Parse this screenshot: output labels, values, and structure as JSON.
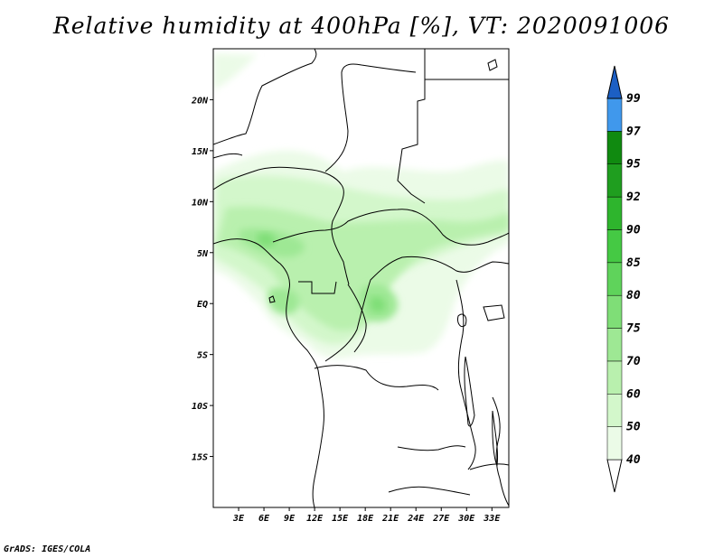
{
  "title": "Relative humidity at 400hPa [%], VT: 2020091006",
  "credit": "GrADS: IGES/COLA",
  "map": {
    "lon_range": [
      0,
      35
    ],
    "lat_range": [
      -20,
      25
    ],
    "x_ticks": [
      "3E",
      "6E",
      "9E",
      "12E",
      "15E",
      "18E",
      "21E",
      "24E",
      "27E",
      "30E",
      "33E"
    ],
    "x_tick_values": [
      3,
      6,
      9,
      12,
      15,
      18,
      21,
      24,
      27,
      30,
      33
    ],
    "y_ticks": [
      "20N",
      "15N",
      "10N",
      "5N",
      "EQ",
      "5S",
      "10S",
      "15S"
    ],
    "y_tick_values": [
      20,
      15,
      10,
      5,
      0,
      -5,
      -10,
      -15
    ]
  },
  "colorbar": {
    "levels": [
      "40",
      "50",
      "60",
      "70",
      "75",
      "80",
      "85",
      "90",
      "92",
      "95",
      "97",
      "99"
    ],
    "colors": [
      "#ebfbe7",
      "#d3f7cb",
      "#b9f0ae",
      "#9ee894",
      "#7fde77",
      "#5fd35b",
      "#45c944",
      "#2eb52d",
      "#1f9e1f",
      "#108a10",
      "#4098ec",
      "#2176d8",
      "#1c5fc4"
    ]
  },
  "chart_data": {
    "type": "heatmap",
    "title": "Relative humidity at 400hPa [%], VT: 2020091006",
    "xlabel": "",
    "ylabel": "",
    "xlim": [
      0,
      35
    ],
    "ylim": [
      -20,
      25
    ],
    "levels": [
      40,
      50,
      60,
      70,
      75,
      80,
      85,
      90,
      92,
      95,
      97,
      99
    ],
    "regions": [
      {
        "lon": [
          0,
          35
        ],
        "lat": [
          -4,
          14
        ],
        "rh": "40-70"
      },
      {
        "lon": [
          0,
          10
        ],
        "lat": [
          2,
          8
        ],
        "rh": "60-75"
      },
      {
        "lon": [
          18,
          19
        ],
        "lat": [
          -1,
          1
        ],
        "rh": "70-80"
      },
      {
        "lon": [
          0,
          35
        ],
        "lat": [
          -20,
          -6
        ],
        "rh": "<40"
      },
      {
        "lon": [
          0,
          35
        ],
        "lat": [
          16,
          25
        ],
        "rh": "<40"
      }
    ]
  }
}
